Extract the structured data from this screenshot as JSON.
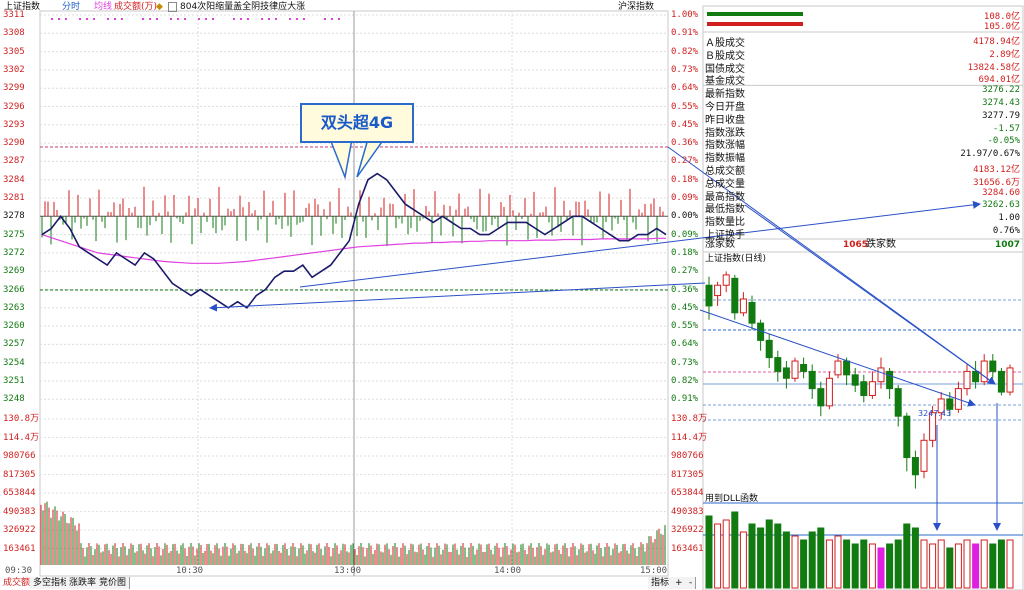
{
  "header": {
    "index_name": "上证指数",
    "tab_fenshi": "分时",
    "legend_avg": "均线",
    "legend_volume": "成交额(万)",
    "news": "804次阳缩量盖全阴技律应大涨",
    "right_label": "沪深指数"
  },
  "annotation": {
    "callout": "双头超4G"
  },
  "intraday": {
    "left_price_ticks": [
      "3311",
      "3308",
      "3305",
      "3302",
      "3299",
      "3296",
      "3293",
      "3290",
      "3287",
      "3284",
      "3281",
      "3278",
      "3275",
      "3272",
      "3269",
      "3266",
      "3263",
      "3260",
      "3257",
      "3254",
      "3251",
      "3248"
    ],
    "right_pct_ticks": [
      "1.00%",
      "0.91%",
      "0.82%",
      "0.73%",
      "0.64%",
      "0.55%",
      "0.45%",
      "0.36%",
      "0.27%",
      "0.18%",
      "0.09%",
      "0.00%",
      "0.09%",
      "0.18%",
      "0.27%",
      "0.36%",
      "0.45%",
      "0.55%",
      "0.64%",
      "0.73%",
      "0.82%",
      "0.91%"
    ],
    "volume_ticks": [
      "130.8万",
      "114.4万",
      "980766",
      "817305",
      "653844",
      "490383",
      "326922",
      "163461"
    ],
    "time_labels": [
      "09:30",
      "10:30",
      "13:00",
      "14:00",
      "15:00"
    ],
    "prev_close": 3277.79,
    "price_series": [
      3275,
      3276,
      3278,
      3276,
      3273,
      3272,
      3271,
      3270,
      3272,
      3271,
      3270,
      3272,
      3271,
      3269,
      3267,
      3266,
      3265,
      3266,
      3265,
      3264,
      3263,
      3264,
      3263,
      3265,
      3266,
      3268,
      3269,
      3269,
      3270,
      3268,
      3269,
      3270,
      3272,
      3274,
      3280,
      3284,
      3285,
      3284,
      3282,
      3280,
      3279,
      3278,
      3277,
      3278,
      3277,
      3276,
      3276,
      3275,
      3275,
      3276,
      3277,
      3277,
      3277,
      3276,
      3275,
      3276,
      3277,
      3278,
      3278,
      3277,
      3276,
      3275,
      3274,
      3274,
      3275,
      3275,
      3276,
      3275
    ],
    "avg_series": [
      3275,
      3274.5,
      3274,
      3273.5,
      3273,
      3272.5,
      3272,
      3271.8,
      3271.6,
      3271.4,
      3271.2,
      3271,
      3270.8,
      3270.6,
      3270.5,
      3270.4,
      3270.3,
      3270.3,
      3270.3,
      3270.3,
      3270.4,
      3270.5,
      3270.6,
      3270.8,
      3271,
      3271.2,
      3271.4,
      3271.6,
      3271.8,
      3272,
      3272.2,
      3272.4,
      3272.6,
      3272.8,
      3273,
      3273.1,
      3273.2,
      3273.3,
      3273.4,
      3273.5,
      3273.6,
      3273.6,
      3273.7,
      3273.7,
      3273.8,
      3273.8,
      3273.9,
      3273.9,
      3274,
      3274,
      3274,
      3274,
      3274,
      3274.1,
      3274.1,
      3274.1,
      3274.2,
      3274.2,
      3274.2,
      3274.2,
      3274.3,
      3274.3,
      3274.3,
      3274.3,
      3274.3,
      3274.3,
      3274.4,
      3274.4
    ]
  },
  "stats": {
    "bar1_val": "108.0亿",
    "bar2_val": "105.0亿",
    "rows": [
      {
        "label": "Ａ股成交",
        "value": "4178.94亿",
        "color": "red"
      },
      {
        "label": "Ｂ股成交",
        "value": "2.89亿",
        "color": "red"
      },
      {
        "label": "国债成交",
        "value": "13824.58亿",
        "color": "red"
      },
      {
        "label": "基金成交",
        "value": "694.01亿",
        "color": "red"
      },
      {
        "label": "最新指数",
        "value": "3276.22",
        "color": "grn"
      },
      {
        "label": "今日开盘",
        "value": "3274.43",
        "color": "grn"
      },
      {
        "label": "昨日收盘",
        "value": "3277.79",
        "color": "blk"
      },
      {
        "label": "指数涨跌",
        "value": "-1.57",
        "color": "grn"
      },
      {
        "label": "指数涨幅",
        "value": "-0.05%",
        "color": "grn"
      },
      {
        "label": "指数振幅",
        "value": "21.97/0.67%",
        "color": "blk"
      },
      {
        "label": "总成交额",
        "value": "4183.12亿",
        "color": "red"
      },
      {
        "label": "总成交量",
        "value": "31656.6万",
        "color": "red"
      },
      {
        "label": "最高指数",
        "value": "3284.60",
        "color": "red"
      },
      {
        "label": "最低指数",
        "value": "3262.63",
        "color": "grn"
      },
      {
        "label": "指数量比",
        "value": "1.00",
        "color": "blk"
      },
      {
        "label": "上证换手",
        "value": "0.76%",
        "color": "blk"
      }
    ],
    "up_label": "涨家数",
    "up_count": "1065",
    "down_label": "跌家数",
    "down_count": "1007"
  },
  "daily": {
    "title": "上证指数(日线)",
    "sub_label": "用到DLL函数",
    "low_marker": "3247.43",
    "candles": [
      [
        3288,
        3300,
        3280,
        3305,
        "g"
      ],
      [
        3294,
        3300,
        3288,
        3302,
        "r"
      ],
      [
        3300,
        3306,
        3296,
        3308,
        "r"
      ],
      [
        3304,
        3284,
        3280,
        3306,
        "g"
      ],
      [
        3284,
        3292,
        3282,
        3296,
        "r"
      ],
      [
        3290,
        3278,
        3274,
        3294,
        "g"
      ],
      [
        3278,
        3268,
        3262,
        3280,
        "g"
      ],
      [
        3268,
        3258,
        3252,
        3272,
        "g"
      ],
      [
        3258,
        3250,
        3244,
        3262,
        "g"
      ],
      [
        3252,
        3246,
        3240,
        3256,
        "g"
      ],
      [
        3246,
        3256,
        3244,
        3258,
        "r"
      ],
      [
        3254,
        3250,
        3246,
        3258,
        "g"
      ],
      [
        3250,
        3240,
        3234,
        3254,
        "g"
      ],
      [
        3240,
        3230,
        3224,
        3244,
        "g"
      ],
      [
        3230,
        3246,
        3228,
        3250,
        "r"
      ],
      [
        3248,
        3256,
        3246,
        3260,
        "r"
      ],
      [
        3256,
        3248,
        3242,
        3258,
        "g"
      ],
      [
        3248,
        3242,
        3238,
        3252,
        "g"
      ],
      [
        3244,
        3236,
        3232,
        3248,
        "g"
      ],
      [
        3236,
        3244,
        3234,
        3250,
        "r"
      ],
      [
        3244,
        3252,
        3240,
        3258,
        "r"
      ],
      [
        3250,
        3240,
        3234,
        3252,
        "g"
      ],
      [
        3240,
        3224,
        3218,
        3242,
        "g"
      ],
      [
        3224,
        3200,
        3192,
        3226,
        "g"
      ],
      [
        3200,
        3190,
        3182,
        3204,
        "g"
      ],
      [
        3192,
        3210,
        3188,
        3214,
        "r"
      ],
      [
        3210,
        3226,
        3206,
        3230,
        "r"
      ],
      [
        3226,
        3234,
        3222,
        3238,
        "r"
      ],
      [
        3234,
        3228,
        3224,
        3238,
        "g"
      ],
      [
        3228,
        3240,
        3226,
        3244,
        "r"
      ],
      [
        3240,
        3250,
        3236,
        3254,
        "r"
      ],
      [
        3250,
        3244,
        3240,
        3256,
        "g"
      ],
      [
        3244,
        3256,
        3242,
        3260,
        "r"
      ],
      [
        3256,
        3250,
        3246,
        3260,
        "g"
      ],
      [
        3250,
        3238,
        3236,
        3252,
        "g"
      ],
      [
        3238,
        3252,
        3236,
        3254,
        "r"
      ]
    ],
    "volumes": [
      [
        0.9,
        "g"
      ],
      [
        0.8,
        "r"
      ],
      [
        0.85,
        "r"
      ],
      [
        0.95,
        "g"
      ],
      [
        0.7,
        "r"
      ],
      [
        0.8,
        "g"
      ],
      [
        0.75,
        "g"
      ],
      [
        0.85,
        "g"
      ],
      [
        0.8,
        "g"
      ],
      [
        0.7,
        "g"
      ],
      [
        0.65,
        "r"
      ],
      [
        0.6,
        "g"
      ],
      [
        0.7,
        "g"
      ],
      [
        0.75,
        "g"
      ],
      [
        0.6,
        "r"
      ],
      [
        0.65,
        "r"
      ],
      [
        0.6,
        "g"
      ],
      [
        0.55,
        "g"
      ],
      [
        0.6,
        "g"
      ],
      [
        0.55,
        "r"
      ],
      [
        0.5,
        "m"
      ],
      [
        0.55,
        "g"
      ],
      [
        0.6,
        "g"
      ],
      [
        0.8,
        "g"
      ],
      [
        0.75,
        "g"
      ],
      [
        0.6,
        "r"
      ],
      [
        0.55,
        "r"
      ],
      [
        0.6,
        "r"
      ],
      [
        0.5,
        "g"
      ],
      [
        0.55,
        "r"
      ],
      [
        0.6,
        "r"
      ],
      [
        0.55,
        "m"
      ],
      [
        0.6,
        "r"
      ],
      [
        0.55,
        "g"
      ],
      [
        0.6,
        "g"
      ],
      [
        0.6,
        "r"
      ]
    ]
  },
  "bottom_tabs": [
    "成交额",
    "多空指标",
    "涨跌率",
    "竞价图"
  ],
  "bottom_right": {
    "label": "指标",
    "plus": "+",
    "minus": "-"
  },
  "colors": {
    "up": "#d21e1e",
    "down": "#117a11",
    "avg": "#e040e0",
    "price": "#1a1a6a",
    "arrow": "#2a50c8"
  }
}
